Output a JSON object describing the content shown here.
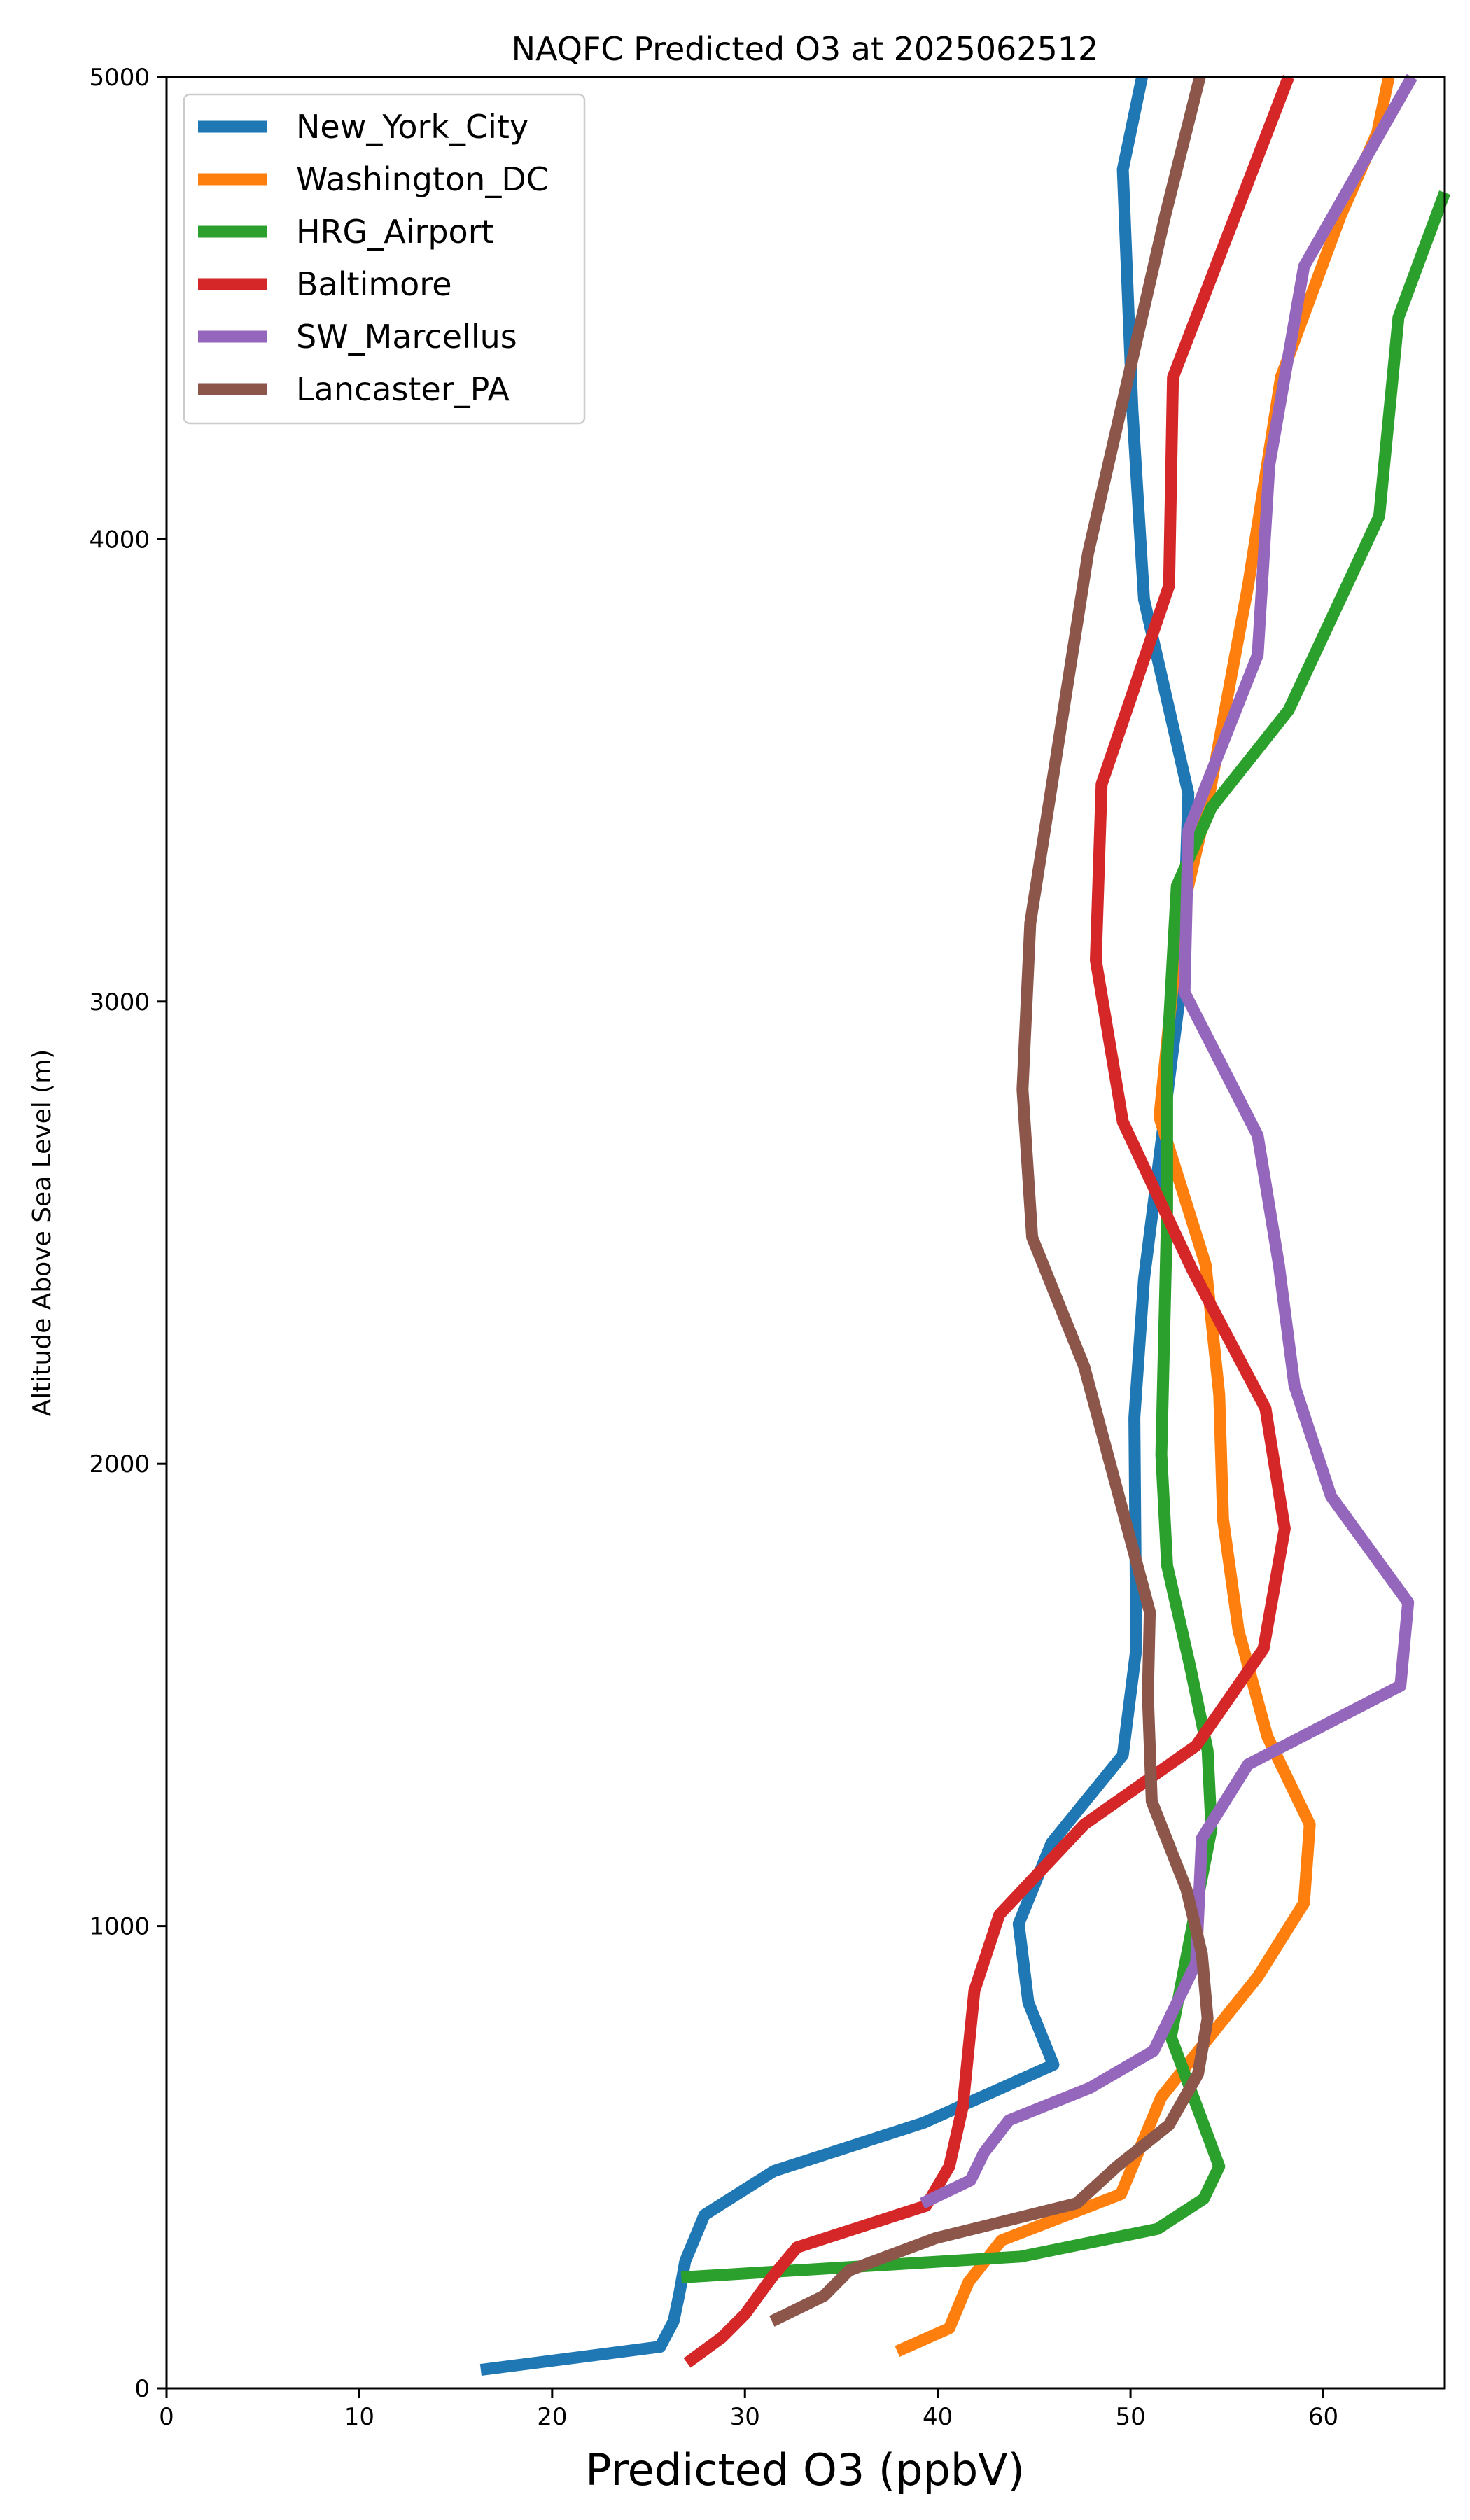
{
  "chart_data": {
    "type": "line",
    "title": "NAQFC Predicted O3 at 2025062512",
    "xlabel": "Predicted O3 (ppbV)",
    "ylabel": "Altitude Above Sea Level (m)",
    "xlim": [
      0,
      66.3
    ],
    "ylim": [
      0,
      5000
    ],
    "xticks": [
      0,
      10,
      20,
      30,
      40,
      50,
      60
    ],
    "yticks": [
      0,
      1000,
      2000,
      3000,
      4000,
      5000
    ],
    "grid": false,
    "legend_position": "top-left",
    "series": [
      {
        "name": "New_York_City",
        "color": "#1f77b4",
        "points": [
          [
            16.3,
            40
          ],
          [
            25.6,
            90
          ],
          [
            26.3,
            145
          ],
          [
            26.6,
            205
          ],
          [
            26.9,
            275
          ],
          [
            27.9,
            375
          ],
          [
            31.5,
            470
          ],
          [
            39.3,
            575
          ],
          [
            46.0,
            700
          ],
          [
            44.7,
            835
          ],
          [
            44.2,
            1005
          ],
          [
            45.9,
            1180
          ],
          [
            49.6,
            1370
          ],
          [
            50.3,
            1600
          ],
          [
            50.2,
            2100
          ],
          [
            50.7,
            2400
          ],
          [
            52.7,
            3060
          ],
          [
            53.0,
            3450
          ],
          [
            50.7,
            3870
          ],
          [
            50.1,
            4280
          ],
          [
            49.6,
            4800
          ],
          [
            50.6,
            5000
          ]
        ]
      },
      {
        "name": "Washington_DC",
        "color": "#ff7f0e",
        "points": [
          [
            37.9,
            80
          ],
          [
            40.6,
            130
          ],
          [
            41.6,
            230
          ],
          [
            43.3,
            320
          ],
          [
            49.5,
            420
          ],
          [
            51.6,
            630
          ],
          [
            56.6,
            890
          ],
          [
            59.0,
            1050
          ],
          [
            59.3,
            1220
          ],
          [
            57.1,
            1410
          ],
          [
            55.6,
            1640
          ],
          [
            54.8,
            1880
          ],
          [
            54.6,
            2150
          ],
          [
            53.9,
            2430
          ],
          [
            51.5,
            2750
          ],
          [
            52.5,
            3160
          ],
          [
            54.1,
            3450
          ],
          [
            56.1,
            3900
          ],
          [
            57.8,
            4350
          ],
          [
            60.9,
            4700
          ],
          [
            62.8,
            4880
          ],
          [
            63.4,
            5000
          ]
        ]
      },
      {
        "name": "HRG_Airport",
        "color": "#2ca02c",
        "points": [
          [
            26.7,
            240
          ],
          [
            44.3,
            285
          ],
          [
            51.4,
            345
          ],
          [
            53.8,
            410
          ],
          [
            54.6,
            480
          ],
          [
            52.1,
            760
          ],
          [
            53.3,
            1020
          ],
          [
            54.2,
            1210
          ],
          [
            54.0,
            1380
          ],
          [
            53.1,
            1560
          ],
          [
            51.9,
            1780
          ],
          [
            51.6,
            2020
          ],
          [
            51.9,
            2550
          ],
          [
            51.9,
            2880
          ],
          [
            52.4,
            3250
          ],
          [
            54.2,
            3420
          ],
          [
            58.2,
            3630
          ],
          [
            62.9,
            4050
          ],
          [
            63.9,
            4480
          ],
          [
            66.3,
            4750
          ]
        ]
      },
      {
        "name": "Baltimore",
        "color": "#d62728",
        "points": [
          [
            27.0,
            55
          ],
          [
            28.8,
            110
          ],
          [
            30.0,
            160
          ],
          [
            31.4,
            240
          ],
          [
            32.7,
            305
          ],
          [
            39.4,
            395
          ],
          [
            40.6,
            480
          ],
          [
            41.3,
            610
          ],
          [
            41.9,
            860
          ],
          [
            43.2,
            1025
          ],
          [
            47.6,
            1220
          ],
          [
            53.4,
            1390
          ],
          [
            56.9,
            1600
          ],
          [
            58.0,
            1860
          ],
          [
            57.0,
            2120
          ],
          [
            53.2,
            2420
          ],
          [
            49.6,
            2740
          ],
          [
            48.2,
            3090
          ],
          [
            48.5,
            3470
          ],
          [
            52.0,
            3900
          ],
          [
            52.2,
            4350
          ],
          [
            58.2,
            5000
          ]
        ]
      },
      {
        "name": "SW_Marcellus",
        "color": "#9467bd",
        "points": [
          [
            39.2,
            400
          ],
          [
            41.7,
            450
          ],
          [
            42.4,
            510
          ],
          [
            43.7,
            580
          ],
          [
            47.9,
            650
          ],
          [
            51.2,
            730
          ],
          [
            53.4,
            920
          ],
          [
            53.7,
            1190
          ],
          [
            56.1,
            1350
          ],
          [
            64.0,
            1520
          ],
          [
            64.4,
            1700
          ],
          [
            60.4,
            1930
          ],
          [
            58.5,
            2170
          ],
          [
            57.7,
            2430
          ],
          [
            56.6,
            2710
          ],
          [
            52.8,
            3020
          ],
          [
            53.0,
            3370
          ],
          [
            56.6,
            3750
          ],
          [
            57.2,
            4160
          ],
          [
            59.0,
            4590
          ],
          [
            64.6,
            5000
          ]
        ]
      },
      {
        "name": "Lancaster_PA",
        "color": "#8c564b",
        "points": [
          [
            31.4,
            145
          ],
          [
            34.1,
            200
          ],
          [
            35.4,
            255
          ],
          [
            39.9,
            325
          ],
          [
            47.2,
            400
          ],
          [
            49.3,
            480
          ],
          [
            52.0,
            570
          ],
          [
            53.5,
            680
          ],
          [
            54.0,
            800
          ],
          [
            53.7,
            940
          ],
          [
            52.9,
            1080
          ],
          [
            51.1,
            1270
          ],
          [
            50.9,
            1500
          ],
          [
            51.0,
            1680
          ],
          [
            47.6,
            2210
          ],
          [
            44.9,
            2490
          ],
          [
            44.4,
            2810
          ],
          [
            44.8,
            3170
          ],
          [
            47.8,
            3970
          ],
          [
            51.8,
            4700
          ],
          [
            53.6,
            5000
          ]
        ]
      }
    ]
  }
}
